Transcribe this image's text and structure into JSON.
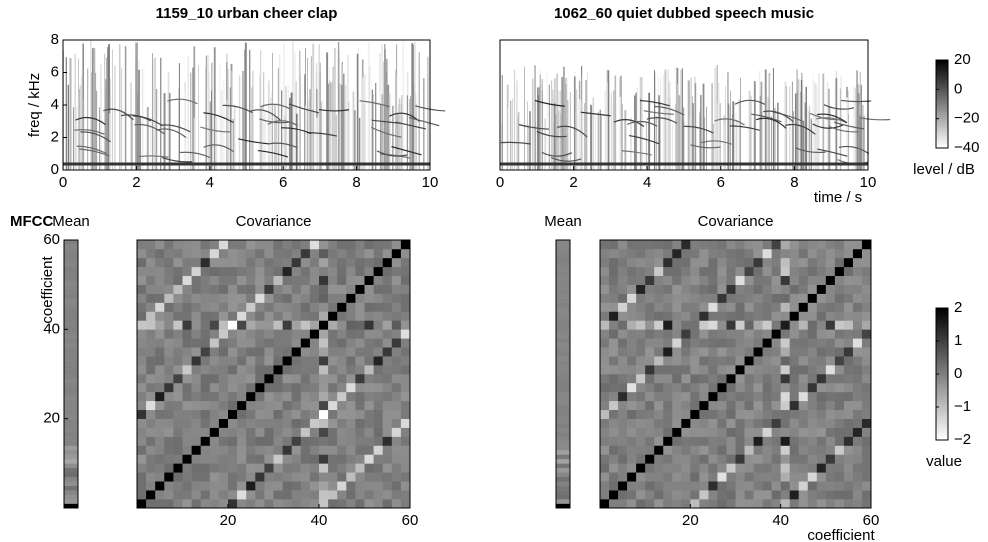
{
  "chart_data": [
    {
      "type": "spectrogram",
      "title": "1159_10 urban cheer clap",
      "y_label": "freq / kHz",
      "xlim": [
        0,
        10
      ],
      "xticks": [
        0,
        2,
        4,
        6,
        8,
        10
      ],
      "ylim": [
        0,
        8
      ],
      "yticks": [
        0,
        2,
        4,
        6,
        8
      ]
    },
    {
      "type": "spectrogram",
      "title": "1062_60 quiet dubbed speech music",
      "x_label": "time / s",
      "xlim": [
        0,
        10
      ],
      "xticks": [
        0,
        2,
        4,
        6,
        8,
        10
      ],
      "colorbar": {
        "clim": [
          -40,
          20
        ],
        "ticks": [
          {
            "value": -40,
            "label": "−40"
          },
          {
            "value": -20,
            "label": "−20"
          },
          0,
          20
        ],
        "label": "level / dB"
      }
    },
    {
      "type": "mean",
      "title": "Mean",
      "label": "MFCC",
      "y_label": "coefficient",
      "ylim": [
        0,
        60
      ],
      "yticks": [
        20,
        40,
        60
      ]
    },
    {
      "type": "covariance",
      "title": "Covariance",
      "xlim": [
        0,
        60
      ],
      "xticks": [
        20,
        40,
        60
      ]
    },
    {
      "type": "mean",
      "title": "Mean"
    },
    {
      "type": "covariance",
      "title": "Covariance",
      "x_label": "coefficient",
      "xlim": [
        0,
        60
      ],
      "xticks": [
        20,
        40,
        60
      ],
      "colorbar": {
        "clim": [
          -2,
          2
        ],
        "ticks": [
          {
            "value": -2,
            "label": "−2"
          },
          {
            "value": -1,
            "label": "−1"
          },
          0,
          1,
          2
        ],
        "label": "value"
      }
    }
  ]
}
